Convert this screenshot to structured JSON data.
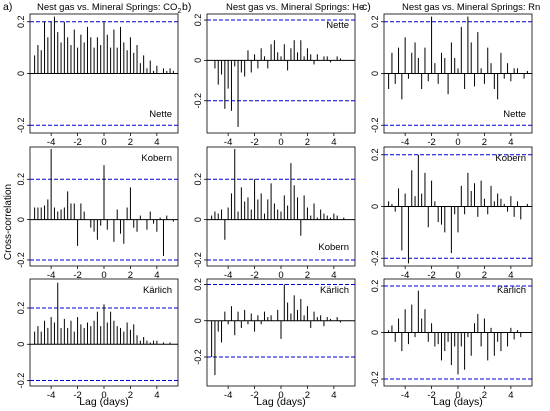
{
  "figure": {
    "shared_ylabel": "Cross-correlation",
    "shared_xlabel": "Lag (days)",
    "columns": [
      {
        "letter": "a)",
        "title_main": "Nest gas vs. Mineral Springs: CO",
        "title_sub": "2"
      },
      {
        "letter": "b)",
        "title_main": "Nest gas vs. Mineral Springs: He",
        "title_sub": ""
      },
      {
        "letter": "c)",
        "title_main": "Nest gas vs. Mineral Springs: Rn",
        "title_sub": ""
      }
    ],
    "colors": {
      "bars": "#000000",
      "frame": "#000000",
      "confidence": "#0000cc"
    }
  },
  "chart_data": [
    {
      "type": "bar",
      "name": "Nette",
      "column": 0,
      "row": 0,
      "xlim": [
        -5.6,
        5.6
      ],
      "ylim": [
        -0.23,
        0.23
      ],
      "yticks": [
        -0.2,
        0,
        0.2
      ],
      "ytick_labels": [
        "-0.2",
        "0",
        "0.2"
      ],
      "xticks": [
        -4,
        -2,
        0,
        2,
        4
      ],
      "xtick_labels": [
        "-4",
        "-2",
        "0",
        "2",
        "4"
      ],
      "confidence": [
        0.2,
        -0.2
      ],
      "label_position": "bottom-right",
      "ylabel": "",
      "xlabel": "",
      "x": [
        -5.25,
        -5.0,
        -4.75,
        -4.5,
        -4.25,
        -4.0,
        -3.75,
        -3.5,
        -3.25,
        -3.0,
        -2.75,
        -2.5,
        -2.25,
        -2.0,
        -1.75,
        -1.5,
        -1.25,
        -1.0,
        -0.75,
        -0.5,
        -0.25,
        0.0,
        0.25,
        0.5,
        0.75,
        1.0,
        1.25,
        1.5,
        1.75,
        2.0,
        2.25,
        2.5,
        2.75,
        3.0,
        3.25,
        3.5,
        3.75,
        4.0,
        4.25,
        4.5,
        4.75,
        5.0,
        5.25
      ],
      "values": [
        0.07,
        0.11,
        0.09,
        0.2,
        0.14,
        0.2,
        0.22,
        0.16,
        0.12,
        0.2,
        0.14,
        0.11,
        0.17,
        0.1,
        0.15,
        0.12,
        0.18,
        0.14,
        0.1,
        0.14,
        0.11,
        0.2,
        0.15,
        0.1,
        0.17,
        0.1,
        0.18,
        0.12,
        0.09,
        0.14,
        0.08,
        0.11,
        0.04,
        0.07,
        0.02,
        0.05,
        0.01,
        0.03,
        0.0,
        0.02,
        0.01,
        0.02,
        0.01
      ]
    },
    {
      "type": "bar",
      "name": "Kobern",
      "column": 0,
      "row": 1,
      "xlim": [
        -5.6,
        5.6
      ],
      "ylim": [
        -0.23,
        0.36
      ],
      "yticks": [
        -0.2,
        0,
        0.2
      ],
      "ytick_labels": [
        "-0.2",
        "0",
        "0.2"
      ],
      "xticks": [
        -4,
        -2,
        0,
        2,
        4
      ],
      "xtick_labels": [
        "-4",
        "-2",
        "0",
        "2",
        "4"
      ],
      "confidence": [
        0.2,
        -0.2
      ],
      "label_position": "top-right",
      "ylabel": "",
      "xlabel": "",
      "x": [
        -5.25,
        -5.0,
        -4.75,
        -4.5,
        -4.25,
        -4.0,
        -3.75,
        -3.5,
        -3.25,
        -3.0,
        -2.75,
        -2.5,
        -2.25,
        -2.0,
        -1.75,
        -1.5,
        -1.25,
        -1.0,
        -0.75,
        -0.5,
        -0.25,
        0.0,
        0.25,
        0.5,
        0.75,
        1.0,
        1.25,
        1.5,
        1.75,
        2.0,
        2.25,
        2.5,
        2.75,
        3.0,
        3.25,
        3.5,
        3.75,
        4.0,
        4.25,
        4.5,
        4.75,
        5.0,
        5.25
      ],
      "values": [
        0.06,
        0.06,
        0.06,
        0.07,
        0.1,
        0.35,
        0.06,
        0.04,
        0.05,
        0.06,
        0.14,
        0.08,
        0.08,
        -0.13,
        0.08,
        0.04,
        0.0,
        -0.04,
        -0.06,
        -0.1,
        -0.03,
        0.27,
        -0.05,
        0.0,
        -0.11,
        0.05,
        -0.07,
        -0.12,
        0.06,
        0.16,
        -0.04,
        -0.06,
        0.02,
        0.0,
        -0.05,
        0.04,
        -0.02,
        -0.06,
        0.01,
        -0.18,
        0.02,
        0.0,
        -0.01
      ]
    },
    {
      "type": "bar",
      "name": "Kärlich",
      "column": 0,
      "row": 2,
      "xlim": [
        -5.6,
        5.6
      ],
      "ylim": [
        -0.23,
        0.36
      ],
      "yticks": [
        -0.2,
        0,
        0.2
      ],
      "ytick_labels": [
        "-0.2",
        "0",
        "0.2"
      ],
      "xticks": [
        -4,
        -2,
        0,
        2,
        4
      ],
      "xtick_labels": [
        "-4",
        "-2",
        "0",
        "2",
        "4"
      ],
      "confidence": [
        0.2,
        -0.2
      ],
      "label_position": "top-right",
      "ylabel": "",
      "xlabel": "",
      "x": [
        -5.25,
        -5.0,
        -4.75,
        -4.5,
        -4.25,
        -4.0,
        -3.75,
        -3.5,
        -3.25,
        -3.0,
        -2.75,
        -2.5,
        -2.25,
        -2.0,
        -1.75,
        -1.5,
        -1.25,
        -1.0,
        -0.75,
        -0.5,
        -0.25,
        0.0,
        0.25,
        0.5,
        0.75,
        1.0,
        1.25,
        1.5,
        1.75,
        2.0,
        2.25,
        2.5,
        2.75,
        3.0,
        3.25,
        3.5,
        3.75,
        4.0,
        4.25,
        4.5,
        4.75,
        5.0,
        5.25
      ],
      "values": [
        0.07,
        0.1,
        0.07,
        0.13,
        0.09,
        0.15,
        0.12,
        0.34,
        0.09,
        0.14,
        0.09,
        0.13,
        0.07,
        0.15,
        0.11,
        0.09,
        0.12,
        0.1,
        0.13,
        0.18,
        0.1,
        0.22,
        0.12,
        0.18,
        0.13,
        0.1,
        0.09,
        0.07,
        0.12,
        0.08,
        0.11,
        0.05,
        0.02,
        0.04,
        0.02,
        0.01,
        0.02,
        0.02,
        0.0,
        0.01,
        0.0,
        0.01,
        0.0
      ]
    },
    {
      "type": "bar",
      "name": "Nette",
      "column": 1,
      "row": 0,
      "xlim": [
        -5.6,
        5.6
      ],
      "ylim": [
        -0.36,
        0.23
      ],
      "yticks": [
        -0.2,
        0,
        0.2
      ],
      "ytick_labels": [
        "-0.2",
        "0",
        "0.2"
      ],
      "xticks": [
        -4,
        -2,
        0,
        2,
        4
      ],
      "xtick_labels": [
        "-4",
        "-2",
        "0",
        "2",
        "4"
      ],
      "confidence": [
        0.2,
        -0.2
      ],
      "label_position": "top-right",
      "ylabel": "",
      "xlabel": "",
      "x": [
        -5.25,
        -5.0,
        -4.75,
        -4.5,
        -4.25,
        -4.0,
        -3.75,
        -3.5,
        -3.25,
        -3.0,
        -2.75,
        -2.5,
        -2.25,
        -2.0,
        -1.75,
        -1.5,
        -1.25,
        -1.0,
        -0.75,
        -0.5,
        -0.25,
        0.0,
        0.25,
        0.5,
        0.75,
        1.0,
        1.25,
        1.5,
        1.75,
        2.0,
        2.25,
        2.5,
        2.75,
        3.0,
        3.25,
        3.5,
        3.75,
        4.0,
        4.25,
        4.5,
        4.75,
        5.0,
        5.25
      ],
      "values": [
        0.0,
        -0.04,
        -0.12,
        -0.07,
        -0.24,
        -0.14,
        -0.25,
        -0.03,
        -0.33,
        -0.06,
        -0.08,
        0.05,
        -0.06,
        0.03,
        -0.04,
        0.06,
        0.02,
        -0.04,
        0.08,
        0.1,
        0.04,
        0.02,
        0.08,
        -0.05,
        0.06,
        0.1,
        0.04,
        0.1,
        0.02,
        0.06,
        0.03,
        -0.02,
        0.03,
        0.0,
        0.02,
        0.02,
        -0.01,
        0.0,
        0.02,
        0.01,
        0.0,
        0.0,
        0.0
      ]
    },
    {
      "type": "bar",
      "name": "Kobern",
      "column": 1,
      "row": 1,
      "xlim": [
        -5.6,
        5.6
      ],
      "ylim": [
        -0.23,
        0.36
      ],
      "yticks": [
        -0.2,
        0,
        0.2
      ],
      "ytick_labels": [
        "-0.2",
        "0",
        "0.2"
      ],
      "xticks": [
        -4,
        -2,
        0,
        2,
        4
      ],
      "xtick_labels": [
        "-4",
        "-2",
        "0",
        "2",
        "4"
      ],
      "confidence": [
        0.2,
        -0.2
      ],
      "label_position": "bottom-right",
      "ylabel": "",
      "xlabel": "",
      "x": [
        -5.25,
        -5.0,
        -4.75,
        -4.5,
        -4.25,
        -4.0,
        -3.75,
        -3.5,
        -3.25,
        -3.0,
        -2.75,
        -2.5,
        -2.25,
        -2.0,
        -1.75,
        -1.5,
        -1.25,
        -1.0,
        -0.75,
        -0.5,
        -0.25,
        0.0,
        0.25,
        0.5,
        0.75,
        1.0,
        1.25,
        1.5,
        1.75,
        2.0,
        2.25,
        2.5,
        2.75,
        3.0,
        3.25,
        3.5,
        3.75,
        4.0,
        4.25,
        4.5,
        4.75,
        5.0,
        5.25
      ],
      "values": [
        0.02,
        0.04,
        0.03,
        0.05,
        -0.1,
        0.06,
        0.13,
        0.35,
        0.04,
        0.16,
        0.09,
        0.11,
        0.05,
        0.2,
        0.1,
        0.13,
        0.03,
        0.1,
        0.18,
        0.08,
        0.05,
        0.04,
        0.12,
        0.07,
        0.28,
        0.17,
        0.11,
        -0.08,
        0.12,
        0.06,
        0.02,
        0.08,
        0.01,
        0.05,
        0.03,
        0.02,
        0.01,
        0.03,
        0.02,
        0.0,
        0.01,
        0.0,
        0.0
      ]
    },
    {
      "type": "bar",
      "name": "Kärlich",
      "column": 1,
      "row": 2,
      "xlim": [
        -5.6,
        5.6
      ],
      "ylim": [
        -0.36,
        0.23
      ],
      "yticks": [
        -0.2,
        0,
        0.2
      ],
      "ytick_labels": [
        "-0.2",
        "0",
        "0.2"
      ],
      "xticks": [
        -4,
        -2,
        0,
        2,
        4
      ],
      "xtick_labels": [
        "-4",
        "-2",
        "0",
        "2",
        "4"
      ],
      "confidence": [
        0.2,
        -0.2
      ],
      "label_position": "top-right",
      "ylabel": "",
      "xlabel": "",
      "x": [
        -5.25,
        -5.0,
        -4.75,
        -4.5,
        -4.25,
        -4.0,
        -3.75,
        -3.5,
        -3.25,
        -3.0,
        -2.75,
        -2.5,
        -2.25,
        -2.0,
        -1.75,
        -1.5,
        -1.25,
        -1.0,
        -0.75,
        -0.5,
        -0.25,
        0.0,
        0.25,
        0.5,
        0.75,
        1.0,
        1.25,
        1.5,
        1.75,
        2.0,
        2.25,
        2.5,
        2.75,
        3.0,
        3.25,
        3.5,
        3.75,
        4.0,
        4.25,
        4.5,
        4.75,
        5.0,
        5.25
      ],
      "values": [
        -0.2,
        -0.3,
        -0.06,
        -0.12,
        0.05,
        -0.02,
        0.08,
        -0.08,
        0.05,
        -0.04,
        0.06,
        -0.02,
        0.04,
        -0.06,
        0.03,
        -0.02,
        0.05,
        0.02,
        0.03,
        0.0,
        0.06,
        -0.1,
        0.2,
        0.1,
        0.04,
        0.14,
        0.06,
        0.12,
        0.03,
        0.08,
        -0.04,
        0.05,
        0.02,
        0.03,
        -0.03,
        0.02,
        0.01,
        0.0,
        0.02,
        -0.01,
        0.0,
        0.0,
        0.0
      ]
    },
    {
      "type": "bar",
      "name": "Nette",
      "column": 2,
      "row": 0,
      "xlim": [
        -5.6,
        5.6
      ],
      "ylim": [
        -0.23,
        0.23
      ],
      "yticks": [
        -0.2,
        0,
        0.2
      ],
      "ytick_labels": [
        "-0.2",
        "0",
        "0.2"
      ],
      "xticks": [
        -4,
        -2,
        0,
        2,
        4
      ],
      "xtick_labels": [
        "-4",
        "-2",
        "0",
        "2",
        "4"
      ],
      "confidence": [
        0.2,
        -0.2
      ],
      "label_position": "bottom-right",
      "ylabel": "",
      "xlabel": "",
      "x": [
        -5.25,
        -5.0,
        -4.75,
        -4.5,
        -4.25,
        -4.0,
        -3.75,
        -3.5,
        -3.25,
        -3.0,
        -2.75,
        -2.5,
        -2.25,
        -2.0,
        -1.75,
        -1.5,
        -1.25,
        -1.0,
        -0.75,
        -0.5,
        -0.25,
        0.0,
        0.25,
        0.5,
        0.75,
        1.0,
        1.25,
        1.5,
        1.75,
        2.0,
        2.25,
        2.5,
        2.75,
        3.0,
        3.25,
        3.5,
        3.75,
        4.0,
        4.25,
        4.5,
        4.75,
        5.0,
        5.25
      ],
      "values": [
        -0.06,
        0.08,
        -0.04,
        0.1,
        -0.1,
        0.14,
        -0.02,
        0.08,
        0.12,
        0.06,
        -0.06,
        0.1,
        -0.03,
        0.22,
        0.04,
        -0.04,
        0.08,
        0.06,
        -0.08,
        0.12,
        0.06,
        0.02,
        0.18,
        -0.06,
        0.22,
        0.12,
        -0.05,
        0.16,
        0.02,
        -0.04,
        0.1,
        0.04,
        -0.06,
        -0.1,
        0.08,
        -0.02,
        0.04,
        -0.03,
        0.02,
        0.02,
        0.0,
        -0.02,
        0.01
      ]
    },
    {
      "type": "bar",
      "name": "Kobern",
      "column": 2,
      "row": 1,
      "xlim": [
        -5.6,
        5.6
      ],
      "ylim": [
        -0.23,
        0.23
      ],
      "yticks": [
        -0.2,
        0,
        0.2
      ],
      "ytick_labels": [
        "-0.2",
        "0",
        "0.2"
      ],
      "xticks": [
        -4,
        -2,
        0,
        2,
        4
      ],
      "xtick_labels": [
        "-4",
        "-2",
        "0",
        "2",
        "4"
      ],
      "confidence": [
        0.2,
        -0.2
      ],
      "label_position": "top-right",
      "ylabel": "",
      "xlabel": "",
      "x": [
        -5.25,
        -5.0,
        -4.75,
        -4.5,
        -4.25,
        -4.0,
        -3.75,
        -3.5,
        -3.25,
        -3.0,
        -2.75,
        -2.5,
        -2.25,
        -2.0,
        -1.75,
        -1.5,
        -1.25,
        -1.0,
        -0.75,
        -0.5,
        -0.25,
        0.0,
        0.25,
        0.5,
        0.75,
        1.0,
        1.25,
        1.5,
        1.75,
        2.0,
        2.25,
        2.5,
        2.75,
        3.0,
        3.25,
        3.5,
        3.75,
        4.0,
        4.25,
        4.5,
        4.75,
        5.0,
        5.25
      ],
      "values": [
        0.02,
        0.01,
        -0.02,
        0.07,
        -0.17,
        0.05,
        -0.22,
        0.14,
        0.04,
        0.2,
        0.05,
        0.13,
        -0.08,
        0.1,
        0.02,
        -0.06,
        -0.07,
        -0.1,
        0.0,
        -0.18,
        -0.03,
        -0.1,
        0.08,
        -0.03,
        0.13,
        0.06,
        0.09,
        -0.04,
        0.1,
        0.03,
        -0.03,
        0.08,
        0.02,
        0.05,
        0.03,
        0.01,
        -0.02,
        0.04,
        -0.04,
        0.02,
        -0.05,
        0.0,
        0.01
      ]
    },
    {
      "type": "bar",
      "name": "Kärlich",
      "column": 2,
      "row": 2,
      "xlim": [
        -5.6,
        5.6
      ],
      "ylim": [
        -0.23,
        0.23
      ],
      "yticks": [
        -0.2,
        0,
        0.2
      ],
      "ytick_labels": [
        "-0.2",
        "0",
        "0.2"
      ],
      "xticks": [
        -4,
        -2,
        0,
        2,
        4
      ],
      "xtick_labels": [
        "-4",
        "-2",
        "0",
        "2",
        "4"
      ],
      "confidence": [
        0.2,
        -0.2
      ],
      "label_position": "top-right",
      "ylabel": "",
      "xlabel": "",
      "x": [
        -5.25,
        -5.0,
        -4.75,
        -4.5,
        -4.25,
        -4.0,
        -3.75,
        -3.5,
        -3.25,
        -3.0,
        -2.75,
        -2.5,
        -2.25,
        -2.0,
        -1.75,
        -1.5,
        -1.25,
        -1.0,
        -0.75,
        -0.5,
        -0.25,
        0.0,
        0.25,
        0.5,
        0.75,
        1.0,
        1.25,
        1.5,
        1.75,
        2.0,
        2.25,
        2.5,
        2.75,
        3.0,
        3.25,
        3.5,
        3.75,
        4.0,
        4.25,
        4.5,
        4.75,
        5.0,
        5.25
      ],
      "values": [
        0.01,
        0.03,
        -0.04,
        0.06,
        -0.08,
        0.1,
        -0.05,
        0.12,
        -0.02,
        0.18,
        0.06,
        0.1,
        -0.04,
        0.04,
        -0.06,
        -0.05,
        -0.12,
        -0.08,
        -0.04,
        -0.14,
        -0.06,
        -0.18,
        -0.06,
        -0.16,
        -0.02,
        -0.1,
        0.04,
        0.08,
        -0.06,
        0.06,
        -0.12,
        0.02,
        -0.1,
        -0.04,
        -0.08,
        0.0,
        -0.06,
        0.02,
        -0.03,
        0.01,
        -0.02,
        0.0,
        0.0
      ]
    }
  ]
}
